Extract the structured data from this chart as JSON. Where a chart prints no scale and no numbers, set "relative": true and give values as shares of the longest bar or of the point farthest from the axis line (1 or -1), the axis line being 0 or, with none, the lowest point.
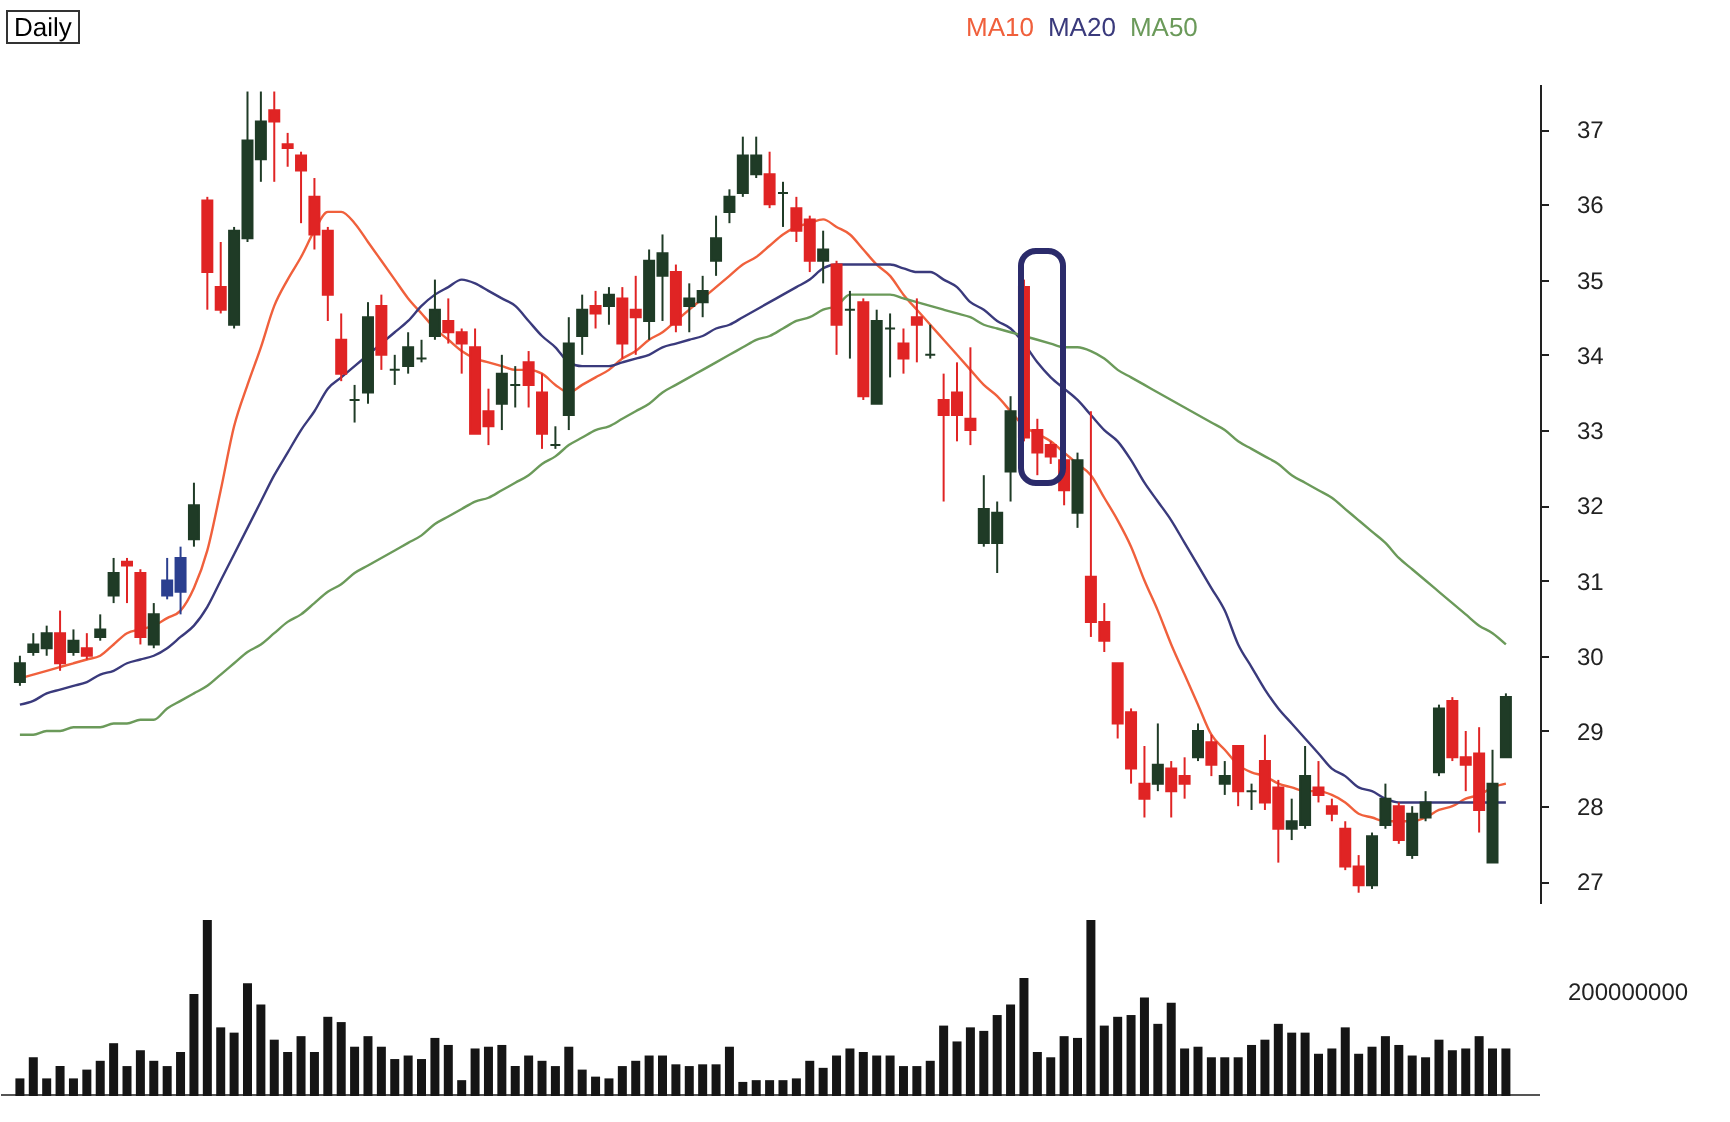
{
  "chart_data": [
    {
      "type": "candlestick",
      "title": "Daily",
      "tick_labels": "y",
      "grid": false,
      "categories": [
        null,
        null,
        null,
        null,
        null,
        null,
        null,
        null,
        null,
        null,
        null,
        null,
        null,
        null,
        null,
        null,
        null,
        null,
        null,
        null,
        null,
        null,
        null,
        null,
        null,
        null,
        null,
        null,
        null,
        null,
        null,
        null,
        null,
        null,
        null,
        null,
        null,
        null,
        null,
        null,
        null,
        null,
        null,
        null,
        null,
        null,
        null,
        null,
        null,
        null,
        null,
        null,
        null,
        null,
        null,
        null,
        null,
        null,
        null,
        null,
        null,
        null,
        null,
        null,
        null,
        null,
        null,
        null,
        null,
        null,
        null,
        null,
        null,
        null,
        null,
        null,
        null,
        null,
        null,
        null,
        null,
        null,
        null,
        null,
        null,
        null,
        null,
        null,
        null,
        null,
        null,
        null,
        null,
        null,
        null,
        null,
        null,
        null,
        null,
        null,
        null,
        null,
        null,
        null,
        null,
        null,
        null,
        null,
        null,
        null,
        null,
        null
      ],
      "ylim": [
        26.7,
        37.6
      ],
      "yticks": [
        27,
        28,
        29,
        30,
        31,
        32,
        33,
        34,
        35,
        36,
        37
      ],
      "ohlc": [
        [
          29.65,
          30.0,
          29.6,
          29.9
        ],
        [
          30.05,
          30.3,
          30.0,
          30.15
        ],
        [
          30.1,
          30.4,
          30.0,
          30.3
        ],
        [
          30.3,
          30.6,
          29.8,
          29.9
        ],
        [
          30.05,
          30.35,
          30.0,
          30.2
        ],
        [
          30.1,
          30.3,
          29.95,
          30.0
        ],
        [
          30.25,
          30.55,
          30.2,
          30.35
        ],
        [
          30.8,
          31.3,
          30.7,
          31.1
        ],
        [
          31.25,
          31.3,
          30.7,
          31.2
        ],
        [
          31.1,
          31.15,
          30.15,
          30.25
        ],
        [
          30.15,
          30.7,
          30.1,
          30.55
        ],
        [
          30.8,
          31.3,
          30.75,
          31.0
        ],
        [
          30.85,
          31.45,
          30.55,
          31.3
        ],
        [
          31.55,
          32.3,
          31.45,
          32.0
        ],
        [
          36.05,
          36.1,
          34.6,
          35.1
        ],
        [
          34.9,
          35.5,
          34.55,
          34.6
        ],
        [
          34.4,
          35.7,
          34.35,
          35.65
        ],
        [
          35.55,
          37.5,
          35.5,
          36.85
        ],
        [
          36.6,
          37.5,
          36.3,
          37.1
        ],
        [
          37.25,
          37.5,
          36.3,
          37.1
        ],
        [
          36.8,
          36.95,
          36.5,
          36.75
        ],
        [
          36.65,
          36.7,
          35.75,
          36.45
        ],
        [
          36.1,
          36.35,
          35.4,
          35.6
        ],
        [
          35.65,
          35.7,
          34.45,
          34.8
        ],
        [
          34.2,
          34.55,
          33.65,
          33.75
        ],
        [
          33.4,
          33.6,
          33.1,
          33.4
        ],
        [
          33.5,
          34.7,
          33.35,
          34.5
        ],
        [
          34.65,
          34.8,
          33.8,
          34.0
        ],
        [
          33.8,
          34.0,
          33.6,
          33.8
        ],
        [
          33.85,
          34.3,
          33.75,
          34.1
        ],
        [
          33.95,
          34.2,
          33.9,
          33.95
        ],
        [
          34.25,
          35.0,
          34.2,
          34.6
        ],
        [
          34.45,
          34.75,
          34.15,
          34.3
        ],
        [
          34.3,
          34.35,
          33.75,
          34.15
        ],
        [
          34.1,
          34.35,
          32.95,
          32.95
        ],
        [
          33.25,
          33.55,
          32.8,
          33.05
        ],
        [
          33.35,
          34.0,
          33.0,
          33.75
        ],
        [
          33.6,
          33.85,
          33.3,
          33.6
        ],
        [
          33.9,
          34.05,
          33.3,
          33.6
        ],
        [
          33.5,
          33.75,
          32.75,
          32.95
        ],
        [
          32.8,
          33.05,
          32.75,
          32.8
        ],
        [
          33.2,
          34.5,
          33.0,
          34.15
        ],
        [
          34.25,
          34.8,
          34.0,
          34.6
        ],
        [
          34.65,
          34.85,
          34.35,
          34.55
        ],
        [
          34.65,
          34.9,
          34.4,
          34.8
        ],
        [
          34.75,
          34.9,
          33.95,
          34.15
        ],
        [
          34.6,
          35.05,
          34.0,
          34.5
        ],
        [
          34.45,
          35.4,
          34.2,
          35.25
        ],
        [
          35.05,
          35.6,
          34.45,
          35.35
        ],
        [
          35.1,
          35.2,
          34.3,
          34.4
        ],
        [
          34.65,
          34.95,
          34.3,
          34.75
        ],
        [
          34.7,
          35.05,
          34.5,
          34.85
        ],
        [
          35.25,
          35.85,
          35.05,
          35.55
        ],
        [
          35.9,
          36.2,
          35.75,
          36.1
        ],
        [
          36.15,
          36.9,
          36.1,
          36.65
        ],
        [
          36.4,
          36.9,
          36.35,
          36.65
        ],
        [
          36.4,
          36.7,
          35.95,
          36.0
        ],
        [
          36.15,
          36.3,
          35.7,
          36.15
        ],
        [
          35.95,
          36.1,
          35.5,
          35.65
        ],
        [
          35.8,
          35.85,
          35.1,
          35.25
        ],
        [
          35.25,
          35.65,
          34.95,
          35.4
        ],
        [
          35.2,
          35.25,
          34.0,
          34.4
        ],
        [
          34.6,
          34.85,
          33.95,
          34.6
        ],
        [
          34.7,
          34.75,
          33.4,
          33.45
        ],
        [
          33.35,
          34.6,
          33.35,
          34.45
        ],
        [
          34.35,
          34.55,
          33.7,
          34.35
        ],
        [
          34.15,
          34.35,
          33.75,
          33.95
        ],
        [
          34.5,
          34.75,
          33.9,
          34.4
        ],
        [
          34.0,
          34.4,
          33.95,
          34.0
        ],
        [
          33.4,
          33.75,
          32.05,
          33.2
        ],
        [
          33.5,
          33.9,
          32.85,
          33.2
        ],
        [
          33.15,
          34.1,
          32.8,
          33.0
        ],
        [
          31.5,
          32.4,
          31.45,
          31.95
        ],
        [
          31.5,
          32.05,
          31.1,
          31.9
        ],
        [
          32.45,
          33.45,
          32.05,
          33.25
        ],
        [
          34.9,
          35.0,
          32.85,
          32.9
        ],
        [
          33.0,
          33.15,
          32.4,
          32.7
        ],
        [
          32.8,
          32.85,
          32.55,
          32.65
        ],
        [
          32.6,
          32.7,
          32.0,
          32.2
        ],
        [
          31.9,
          32.7,
          31.7,
          32.6
        ],
        [
          31.05,
          33.25,
          30.25,
          30.45
        ],
        [
          30.45,
          30.7,
          30.05,
          30.2
        ],
        [
          29.9,
          29.9,
          28.9,
          29.1
        ],
        [
          29.25,
          29.3,
          28.3,
          28.5
        ],
        [
          28.3,
          28.8,
          27.85,
          28.1
        ],
        [
          28.3,
          29.1,
          28.2,
          28.55
        ],
        [
          28.5,
          28.6,
          27.85,
          28.2
        ],
        [
          28.4,
          28.65,
          28.1,
          28.3
        ],
        [
          28.65,
          29.1,
          28.6,
          29.0
        ],
        [
          28.85,
          28.95,
          28.4,
          28.55
        ],
        [
          28.3,
          28.6,
          28.15,
          28.4
        ],
        [
          28.8,
          28.8,
          28.0,
          28.2
        ],
        [
          28.2,
          28.3,
          27.95,
          28.2
        ],
        [
          28.6,
          28.95,
          27.95,
          28.05
        ],
        [
          28.25,
          28.35,
          27.25,
          27.7
        ],
        [
          27.7,
          28.1,
          27.55,
          27.8
        ],
        [
          27.75,
          28.8,
          27.7,
          28.4
        ],
        [
          28.25,
          28.6,
          28.05,
          28.15
        ],
        [
          28.0,
          28.1,
          27.8,
          27.9
        ],
        [
          27.7,
          27.8,
          27.15,
          27.2
        ],
        [
          27.2,
          27.35,
          26.85,
          26.95
        ],
        [
          26.95,
          27.65,
          26.9,
          27.6
        ],
        [
          27.75,
          28.3,
          27.7,
          28.1
        ],
        [
          28.0,
          28.05,
          27.5,
          27.55
        ],
        [
          27.35,
          28.0,
          27.3,
          27.9
        ],
        [
          27.85,
          28.2,
          27.8,
          28.05
        ],
        [
          28.45,
          29.35,
          28.4,
          29.3
        ],
        [
          29.4,
          29.45,
          28.6,
          28.65
        ],
        [
          28.65,
          29.0,
          28.2,
          28.55
        ],
        [
          28.7,
          29.05,
          27.65,
          27.95
        ],
        [
          27.25,
          28.75,
          27.25,
          28.3
        ],
        [
          28.65,
          29.5,
          28.65,
          29.45
        ]
      ],
      "colors": [
        "#1f3b26",
        "#1f3b26",
        "#1f3b26",
        "#e02424",
        "#1f3b26",
        "#e02424",
        "#1f3b26",
        "#1f3b26",
        "#e02424",
        "#e02424",
        "#1f3b26",
        "#2b3f8f",
        "#2b3f8f",
        "#1f3b26",
        "#e02424",
        "#e02424",
        "#1f3b26",
        "#1f3b26",
        "#1f3b26",
        "#e02424",
        "#e02424",
        "#e02424",
        "#e02424",
        "#e02424",
        "#e02424",
        "#1f3b26",
        "#1f3b26",
        "#e02424",
        "#1f3b26",
        "#1f3b26",
        "#1f3b26",
        "#1f3b26",
        "#e02424",
        "#e02424",
        "#e02424",
        "#e02424",
        "#1f3b26",
        "#1f3b26",
        "#e02424",
        "#e02424",
        "#1f3b26",
        "#1f3b26",
        "#1f3b26",
        "#e02424",
        "#1f3b26",
        "#e02424",
        "#e02424",
        "#1f3b26",
        "#1f3b26",
        "#e02424",
        "#1f3b26",
        "#1f3b26",
        "#1f3b26",
        "#1f3b26",
        "#1f3b26",
        "#1f3b26",
        "#e02424",
        "#1f3b26",
        "#e02424",
        "#e02424",
        "#1f3b26",
        "#e02424",
        "#1f3b26",
        "#e02424",
        "#1f3b26",
        "#1f3b26",
        "#e02424",
        "#e02424",
        "#1f3b26",
        "#e02424",
        "#e02424",
        "#e02424",
        "#1f3b26",
        "#1f3b26",
        "#1f3b26",
        "#e02424",
        "#e02424",
        "#e02424",
        "#e02424",
        "#1f3b26",
        "#e02424",
        "#e02424",
        "#e02424",
        "#e02424",
        "#e02424",
        "#1f3b26",
        "#e02424",
        "#e02424",
        "#1f3b26",
        "#e02424",
        "#1f3b26",
        "#e02424",
        "#1f3b26",
        "#e02424",
        "#e02424",
        "#1f3b26",
        "#1f3b26",
        "#e02424",
        "#e02424",
        "#e02424",
        "#e02424",
        "#1f3b26",
        "#1f3b26",
        "#e02424",
        "#1f3b26",
        "#1f3b26",
        "#1f3b26",
        "#e02424",
        "#e02424",
        "#e02424",
        "#1f3b26",
        "#1f3b26"
      ],
      "series": [
        {
          "name": "MA10",
          "type": "line",
          "color": "#f0603c",
          "values": [
            29.7,
            29.75,
            29.8,
            29.85,
            29.9,
            29.95,
            30.0,
            30.15,
            30.3,
            30.35,
            30.4,
            30.5,
            30.6,
            30.9,
            31.4,
            32.2,
            33.05,
            33.6,
            34.1,
            34.65,
            35.0,
            35.3,
            35.65,
            35.9,
            35.9,
            35.75,
            35.5,
            35.25,
            35.0,
            34.75,
            34.55,
            34.35,
            34.2,
            34.05,
            33.95,
            33.9,
            33.85,
            33.8,
            33.8,
            33.75,
            33.6,
            33.5,
            33.6,
            33.7,
            33.8,
            33.95,
            34.05,
            34.2,
            34.3,
            34.45,
            34.6,
            34.75,
            34.9,
            35.05,
            35.2,
            35.3,
            35.45,
            35.6,
            35.7,
            35.75,
            35.8,
            35.7,
            35.6,
            35.4,
            35.2,
            35.05,
            34.8,
            34.6,
            34.4,
            34.2,
            34.0,
            33.8,
            33.6,
            33.45,
            33.25,
            33.05,
            32.95,
            32.85,
            32.7,
            32.55,
            32.4,
            32.1,
            31.8,
            31.45,
            31.0,
            30.6,
            30.15,
            29.75,
            29.35,
            28.95,
            28.75,
            28.55,
            28.45,
            28.4,
            28.3,
            28.25,
            28.2,
            28.2,
            28.15,
            28.05,
            27.9,
            27.85,
            27.8,
            27.8,
            27.8,
            27.85,
            27.95,
            28.0,
            28.1,
            28.15,
            28.25,
            28.3
          ]
        },
        {
          "name": "MA20",
          "type": "line",
          "color": "#3a3a7c",
          "values": [
            29.35,
            29.4,
            29.5,
            29.55,
            29.6,
            29.65,
            29.75,
            29.8,
            29.9,
            29.95,
            30.0,
            30.1,
            30.25,
            30.4,
            30.65,
            31.0,
            31.35,
            31.7,
            32.05,
            32.4,
            32.7,
            33.0,
            33.25,
            33.55,
            33.7,
            33.85,
            34.0,
            34.15,
            34.3,
            34.45,
            34.65,
            34.8,
            34.9,
            35.0,
            34.95,
            34.85,
            34.75,
            34.65,
            34.45,
            34.25,
            34.1,
            33.9,
            33.85,
            33.85,
            33.85,
            33.9,
            33.95,
            34.0,
            34.1,
            34.15,
            34.2,
            34.25,
            34.35,
            34.4,
            34.5,
            34.6,
            34.7,
            34.8,
            34.9,
            35.0,
            35.15,
            35.2,
            35.2,
            35.2,
            35.2,
            35.2,
            35.15,
            35.1,
            35.1,
            35.0,
            34.9,
            34.7,
            34.6,
            34.45,
            34.35,
            34.15,
            33.9,
            33.7,
            33.55,
            33.4,
            33.2,
            33.0,
            32.85,
            32.6,
            32.3,
            32.05,
            31.8,
            31.5,
            31.2,
            30.9,
            30.6,
            30.15,
            29.85,
            29.55,
            29.3,
            29.1,
            28.9,
            28.7,
            28.5,
            28.4,
            28.25,
            28.2,
            28.1,
            28.05,
            28.05,
            28.05,
            28.05,
            28.05,
            28.05,
            28.05,
            28.05,
            28.05
          ]
        },
        {
          "name": "MA50",
          "type": "line",
          "color": "#6b9a5a",
          "values": [
            28.95,
            28.95,
            29.0,
            29.0,
            29.05,
            29.05,
            29.05,
            29.1,
            29.1,
            29.15,
            29.15,
            29.3,
            29.4,
            29.5,
            29.6,
            29.75,
            29.9,
            30.05,
            30.15,
            30.3,
            30.45,
            30.55,
            30.7,
            30.85,
            30.95,
            31.1,
            31.2,
            31.3,
            31.4,
            31.5,
            31.6,
            31.75,
            31.85,
            31.95,
            32.05,
            32.1,
            32.2,
            32.3,
            32.4,
            32.55,
            32.65,
            32.8,
            32.9,
            33.0,
            33.05,
            33.15,
            33.25,
            33.35,
            33.5,
            33.6,
            33.7,
            33.8,
            33.9,
            34.0,
            34.1,
            34.2,
            34.25,
            34.35,
            34.45,
            34.5,
            34.6,
            34.65,
            34.8,
            34.8,
            34.8,
            34.8,
            34.75,
            34.7,
            34.65,
            34.6,
            34.55,
            34.5,
            34.4,
            34.35,
            34.3,
            34.25,
            34.2,
            34.15,
            34.1,
            34.1,
            34.05,
            33.95,
            33.8,
            33.7,
            33.6,
            33.5,
            33.4,
            33.3,
            33.2,
            33.1,
            33.0,
            32.85,
            32.75,
            32.65,
            32.55,
            32.4,
            32.3,
            32.2,
            32.1,
            31.95,
            31.8,
            31.65,
            31.5,
            31.3,
            31.15,
            31.0,
            30.85,
            30.7,
            30.55,
            30.4,
            30.3,
            30.15
          ]
        }
      ]
    },
    {
      "type": "bar",
      "relative": true,
      "grid": false,
      "color": "#151515",
      "annotations": [
        "200000000"
      ],
      "categories": [
        null,
        null,
        null,
        null,
        null,
        null,
        null,
        null,
        null,
        null,
        null,
        null,
        null,
        null,
        null,
        null,
        null,
        null,
        null,
        null,
        null,
        null,
        null,
        null,
        null,
        null,
        null,
        null,
        null,
        null,
        null,
        null,
        null,
        null,
        null,
        null,
        null,
        null,
        null,
        null,
        null,
        null,
        null,
        null,
        null,
        null,
        null,
        null,
        null,
        null,
        null,
        null,
        null,
        null,
        null,
        null,
        null,
        null,
        null,
        null,
        null,
        null,
        null,
        null,
        null,
        null,
        null,
        null,
        null,
        null,
        null,
        null,
        null,
        null,
        null,
        null,
        null,
        null,
        null,
        null,
        null,
        null,
        null,
        null,
        null,
        null,
        null,
        null,
        null,
        null,
        null,
        null,
        null,
        null,
        null,
        null,
        null,
        null,
        null,
        null,
        null,
        null,
        null,
        null,
        null,
        null,
        null,
        null,
        null,
        null,
        null,
        null
      ],
      "values": [
        0.1,
        0.22,
        0.1,
        0.17,
        0.1,
        0.15,
        0.2,
        0.3,
        0.17,
        0.26,
        0.2,
        0.17,
        0.25,
        0.58,
        1,
        0.39,
        0.36,
        0.64,
        0.52,
        0.32,
        0.25,
        0.34,
        0.25,
        0.45,
        0.42,
        0.28,
        0.34,
        0.28,
        0.21,
        0.23,
        0.21,
        0.33,
        0.29,
        0.09,
        0.27,
        0.28,
        0.29,
        0.17,
        0.23,
        0.2,
        0.17,
        0.28,
        0.15,
        0.11,
        0.1,
        0.17,
        0.2,
        0.23,
        0.23,
        0.18,
        0.17,
        0.18,
        0.18,
        0.28,
        0.08,
        0.09,
        0.09,
        0.09,
        0.1,
        0.2,
        0.16,
        0.23,
        0.27,
        0.25,
        0.23,
        0.23,
        0.17,
        0.17,
        0.2,
        0.4,
        0.31,
        0.39,
        0.37,
        0.46,
        0.52,
        0.67,
        0.25,
        0.22,
        0.34,
        0.33,
        1,
        0.4,
        0.45,
        0.46,
        0.56,
        0.41,
        0.53,
        0.27,
        0.28,
        0.22,
        0.22,
        0.22,
        0.29,
        0.32,
        0.41,
        0.36,
        0.36,
        0.24,
        0.27,
        0.39,
        0.24,
        0.28,
        0.34,
        0.29,
        0.23,
        0.22,
        0.32,
        0.26,
        0.27,
        0.34,
        0.27,
        0.27
      ]
    }
  ]
}
